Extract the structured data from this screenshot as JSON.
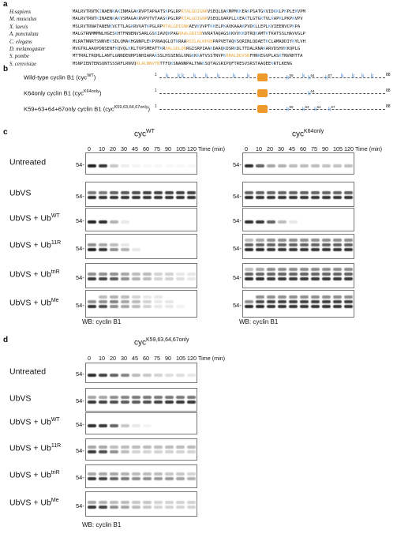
{
  "panels": {
    "a": "a",
    "b": "b",
    "c": "c",
    "d": "d"
  },
  "alignment": [
    {
      "species": "H.sapiens",
      "segs": [
        [
          "n",
          "MALRVTRNTK"
        ],
        [
          "b",
          "I"
        ],
        [
          "n",
          "NAEN"
        ],
        [
          "b",
          "K"
        ],
        [
          "n",
          "A"
        ],
        [
          "b",
          "K"
        ],
        [
          "n",
          "INMAGA"
        ],
        [
          "b",
          "K"
        ],
        [
          "n",
          "RVPTAPAATS"
        ],
        [
          "b",
          "K"
        ],
        [
          "n",
          "PGLRP"
        ],
        [
          "o",
          "RTALGDIGNK"
        ],
        [
          "n",
          "VSEQLQA"
        ],
        [
          "b",
          "K"
        ],
        [
          "n",
          "MPM"
        ],
        [
          "b",
          "KK"
        ],
        [
          "n",
          "EA"
        ],
        [
          "b",
          "K"
        ],
        [
          "n",
          "PSATG"
        ],
        [
          "b",
          "K"
        ],
        [
          "n",
          "VID"
        ],
        [
          "b",
          "KK"
        ],
        [
          "n",
          "LP"
        ],
        [
          "b",
          "K"
        ],
        [
          "n",
          "PLE"
        ],
        [
          "b",
          "K"
        ],
        [
          "n",
          "VPM"
        ]
      ]
    },
    {
      "species": "M. musculus",
      "segs": [
        [
          "n",
          "MALRVTRNT"
        ],
        [
          "b",
          "K"
        ],
        [
          "n",
          "INAEN"
        ],
        [
          "b",
          "K"
        ],
        [
          "n",
          "A"
        ],
        [
          "b",
          "K"
        ],
        [
          "n",
          "VSMAGA"
        ],
        [
          "b",
          "K"
        ],
        [
          "n",
          "RVPVTVTAAS"
        ],
        [
          "b",
          "K"
        ],
        [
          "n",
          "PGLRP"
        ],
        [
          "o",
          "RTALGDIGNK"
        ],
        [
          "n",
          "VSEQLQARPLL"
        ],
        [
          "b",
          "K"
        ],
        [
          "n",
          "EA"
        ],
        [
          "b",
          "K"
        ],
        [
          "n",
          "TLGTG"
        ],
        [
          "b",
          "K"
        ],
        [
          "n",
          "TVL"
        ],
        [
          "b",
          "K"
        ],
        [
          "n",
          "AP"
        ],
        [
          "b",
          "K"
        ],
        [
          "n",
          "LPKP"
        ],
        [
          "b",
          "K"
        ],
        [
          "n",
          "VPV"
        ]
      ]
    },
    {
      "species": "X. laevis",
      "segs": [
        [
          "n",
          "MSLRVTRNATANEN"
        ],
        [
          "b",
          "K"
        ],
        [
          "n",
          "VCTTLAG"
        ],
        [
          "b",
          "K"
        ],
        [
          "n",
          "RVVAT"
        ],
        [
          "b",
          "K"
        ],
        [
          "n",
          "PGLRP"
        ],
        [
          "o",
          "RTALGDIGNK"
        ],
        [
          "n",
          "AEV"
        ],
        [
          "b",
          "K"
        ],
        [
          "n",
          "VVPT"
        ],
        [
          "b",
          "KK"
        ],
        [
          "n",
          "ELP"
        ],
        [
          "b",
          "K"
        ],
        [
          "n",
          "AVKAAA"
        ],
        [
          "b",
          "K"
        ],
        [
          "n",
          "PVD"
        ],
        [
          "b",
          "K"
        ],
        [
          "n",
          "LLEPL"
        ],
        [
          "b",
          "K"
        ],
        [
          "n",
          "VIEENVCP"
        ],
        [
          "b",
          "K"
        ],
        [
          "n",
          "PA"
        ]
      ]
    },
    {
      "species": "A. punctulata",
      "segs": [
        [
          "n",
          "MALGTRNMMMNLHGES"
        ],
        [
          "b",
          "K"
        ],
        [
          "n",
          "HTFNNENVSARLGS"
        ],
        [
          "b",
          "K"
        ],
        [
          "n",
          "IAVQ"
        ],
        [
          "b",
          "K"
        ],
        [
          "n",
          "PAG"
        ],
        [
          "o",
          "RAALGDISN"
        ],
        [
          "n",
          "VVRATAQAGS"
        ],
        [
          "b",
          "K"
        ],
        [
          "n",
          "KVV"
        ],
        [
          "b",
          "KK"
        ],
        [
          "n",
          "DTRQ"
        ],
        [
          "b",
          "K"
        ],
        [
          "n",
          "AMT"
        ],
        [
          "b",
          "K"
        ],
        [
          "n",
          "TKATSSLHAVVGLP"
        ]
      ]
    },
    {
      "species": "C. elegans",
      "segs": [
        [
          "n",
          "MLRATNNRTSNNVE"
        ],
        [
          "b",
          "K"
        ],
        [
          "n",
          "SDLQMA"
        ],
        [
          "b",
          "K"
        ],
        [
          "n",
          "HGNNPLE"
        ],
        [
          "b",
          "K"
        ],
        [
          "n",
          "PVNAQGLQT"
        ],
        [
          "b",
          "K"
        ],
        [
          "n",
          "RAA"
        ],
        [
          "o",
          "RSILALKPGN"
        ],
        [
          "n",
          "PAPVETAQ"
        ],
        [
          "b",
          "K"
        ],
        [
          "n",
          "SQRINLQDAET"
        ],
        [
          "b",
          "K"
        ],
        [
          "n",
          "CLAMADDIY"
        ],
        [
          "b",
          "K"
        ],
        [
          "n",
          "YLVH"
        ]
      ]
    },
    {
      "species": "D. melanogaster",
      "segs": [
        [
          "n",
          "MVGTRLAAQPDNSENF"
        ],
        [
          "b",
          "K"
        ],
        [
          "n",
          "QVQL"
        ],
        [
          "b",
          "K"
        ],
        [
          "n",
          "KLTVPSMEATT"
        ],
        [
          "b",
          "K"
        ],
        [
          "n",
          "R"
        ],
        [
          "o",
          "AALGDLQN"
        ],
        [
          "n",
          "RGISRPIAA"
        ],
        [
          "b",
          "K"
        ],
        [
          "n",
          "DAAQ"
        ],
        [
          "b",
          "K"
        ],
        [
          "n",
          "DSR"
        ],
        [
          "b",
          "K"
        ],
        [
          "n",
          "DLTTDALRNA"
        ],
        [
          "b",
          "K"
        ],
        [
          "n",
          "ARVDSHV"
        ],
        [
          "b",
          "K"
        ],
        [
          "n",
          "KQPLG"
        ]
      ]
    },
    {
      "species": "S. pombe",
      "segs": [
        [
          "n",
          "MTTRRLTRQHLLANTLGNNDENHPSNHIARA"
        ],
        [
          "b",
          "K"
        ],
        [
          "n",
          "SSLHSSENSLVNG"
        ],
        [
          "b",
          "K"
        ],
        [
          "n",
          "K"
        ],
        [
          "b",
          "K"
        ],
        [
          "n",
          "ATVSSTNVP"
        ],
        [
          "b",
          "K"
        ],
        [
          "o",
          "RHALDDVSN"
        ],
        [
          "n",
          "FHN"
        ],
        [
          "b",
          "K"
        ],
        [
          "n",
          "EGVPLAS"
        ],
        [
          "b",
          "K"
        ],
        [
          "n",
          "TNVRHTTA"
        ]
      ]
    },
    {
      "species": "S. cerevisiae",
      "segs": [
        [
          "n",
          "MSNPIENTENSQNTSSSRFLRNVQ"
        ],
        [
          "o",
          "RLALNNVTN"
        ],
        [
          "n",
          "TTFQ"
        ],
        [
          "b",
          "K"
        ],
        [
          "n",
          "SNANNPALTNA"
        ],
        [
          "b",
          "K"
        ],
        [
          "n",
          "SQTAGSRIPQFTRESVSRSTAAQEE"
        ],
        [
          "b",
          "K"
        ],
        [
          "n",
          "RTLKENG"
        ]
      ]
    }
  ],
  "constructs": [
    {
      "label_pre": "Wild-type cyclin B1 (cyc",
      "label_sup": "WT",
      "label_post": ")",
      "start": "1",
      "end": "88"
    },
    {
      "label_pre": "K64only cyclin B1 (cyc",
      "label_sup": "K64only",
      "label_post": ")",
      "start": "1",
      "end": "88",
      "k64": "k",
      "k64_sup": "64"
    },
    {
      "label_pre": "K59+63+64+67only cyclin B1 (cyc",
      "label_sup": "K59,63,64,67only",
      "label_post": ")",
      "start": "1",
      "end": "88",
      "k59": "k",
      "k59_sup": "59",
      "k63": "k",
      "k63_sup": "63",
      "k64": "k",
      "k64_sup": "64",
      "k67": "k",
      "k67_sup": "67"
    }
  ],
  "wt_k_sups": {
    "k59": "59",
    "k64": "64",
    "k67": "67"
  },
  "timepoints": [
    "0",
    "10",
    "20",
    "30",
    "45",
    "60",
    "75",
    "90",
    "105",
    "120"
  ],
  "time_label": "Time (min)",
  "c_left_header": {
    "pre": "cyc",
    "sup": "WT"
  },
  "c_right_header": {
    "pre": "cyc",
    "sup": "K64only"
  },
  "d_header": {
    "pre": "cyc",
    "sup": "K59,63,64,67only"
  },
  "rows": [
    {
      "pre": "Untreated",
      "sup": ""
    },
    {
      "pre": "UbVS",
      "sup": ""
    },
    {
      "pre": "UbVS + Ub",
      "sup": "WT"
    },
    {
      "pre": "UbVS + Ub",
      "sup": "11R"
    },
    {
      "pre": "UbVS + Ub",
      "sup": "triR"
    },
    {
      "pre": "UbVS + Ub",
      "sup": "Me"
    }
  ],
  "mw": "54-",
  "wb": "WB: cyclin B1",
  "colors": {
    "orange": "#ef9a2c",
    "blue": "#4f8fd4"
  }
}
